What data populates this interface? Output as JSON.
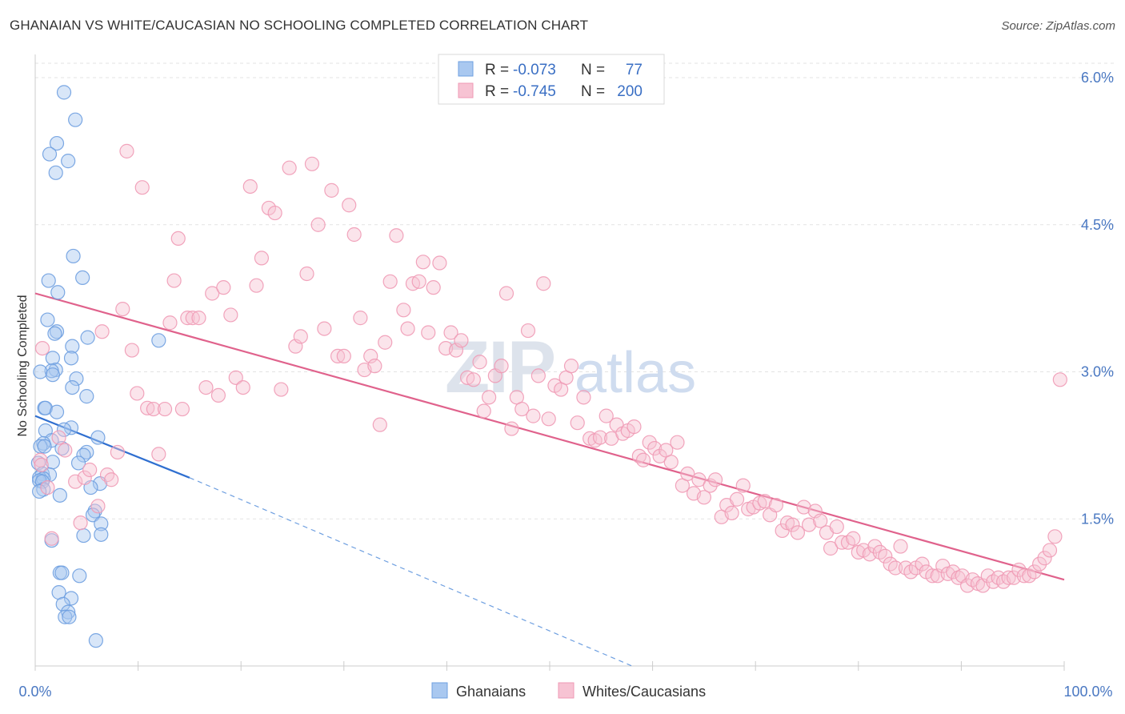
{
  "title": "GHANAIAN VS WHITE/CAUCASIAN NO SCHOOLING COMPLETED CORRELATION CHART",
  "source": "Source: ZipAtlas.com",
  "watermark": {
    "zip": "ZIP",
    "atlas": "atlas"
  },
  "chart_data": {
    "type": "scatter",
    "title": "GHANAIAN VS WHITE/CAUCASIAN NO SCHOOLING COMPLETED CORRELATION CHART",
    "ylabel": "No Schooling Completed",
    "xlim": [
      0,
      100
    ],
    "ylim": [
      0,
      6.3
    ],
    "x_tick_labels": [
      "0.0%",
      "100.0%"
    ],
    "y_ticks": [
      {
        "value": 1.5,
        "label": "1.5%"
      },
      {
        "value": 3.0,
        "label": "3.0%"
      },
      {
        "value": 4.5,
        "label": "4.5%"
      },
      {
        "value": 6.0,
        "label": "6.0%"
      }
    ],
    "grid": "horizontal dashed",
    "legend_position": "top-center",
    "series": [
      {
        "name": "Ghanaians",
        "color": "#6e9fe0",
        "fill": "#a9c8f0",
        "R": "-0.073",
        "N": "77",
        "trend": {
          "x0": 0,
          "y0": 2.55,
          "x1": 15,
          "y1": 1.92,
          "dashed_to_x": 58,
          "dashed_to_y": 0.0
        },
        "points": [
          [
            2.8,
            5.85
          ],
          [
            3.9,
            5.57
          ],
          [
            2.1,
            5.33
          ],
          [
            1.4,
            5.22
          ],
          [
            3.2,
            5.15
          ],
          [
            2.0,
            5.03
          ],
          [
            3.7,
            4.18
          ],
          [
            4.6,
            3.96
          ],
          [
            1.3,
            3.93
          ],
          [
            2.2,
            3.81
          ],
          [
            1.2,
            3.53
          ],
          [
            2.1,
            3.41
          ],
          [
            1.9,
            3.39
          ],
          [
            5.1,
            3.35
          ],
          [
            12.0,
            3.32
          ],
          [
            3.6,
            3.26
          ],
          [
            1.7,
            3.14
          ],
          [
            3.5,
            3.14
          ],
          [
            2.0,
            3.02
          ],
          [
            1.6,
            3.01
          ],
          [
            0.5,
            3.0
          ],
          [
            1.7,
            2.97
          ],
          [
            4.0,
            2.93
          ],
          [
            3.6,
            2.84
          ],
          [
            5.0,
            2.75
          ],
          [
            0.9,
            2.63
          ],
          [
            1.0,
            2.63
          ],
          [
            2.1,
            2.59
          ],
          [
            3.5,
            2.43
          ],
          [
            2.8,
            2.41
          ],
          [
            1.0,
            2.4
          ],
          [
            6.1,
            2.33
          ],
          [
            1.6,
            2.3
          ],
          [
            0.8,
            2.27
          ],
          [
            0.5,
            2.24
          ],
          [
            0.9,
            2.24
          ],
          [
            2.6,
            2.22
          ],
          [
            5.0,
            2.18
          ],
          [
            4.7,
            2.15
          ],
          [
            1.7,
            2.08
          ],
          [
            4.2,
            2.07
          ],
          [
            0.3,
            2.07
          ],
          [
            0.7,
            1.96
          ],
          [
            1.4,
            1.95
          ],
          [
            0.4,
            1.92
          ],
          [
            0.8,
            1.91
          ],
          [
            0.4,
            1.89
          ],
          [
            0.7,
            1.88
          ],
          [
            6.3,
            1.86
          ],
          [
            5.4,
            1.82
          ],
          [
            0.8,
            1.8
          ],
          [
            0.4,
            1.78
          ],
          [
            2.4,
            1.74
          ],
          [
            5.8,
            1.58
          ],
          [
            5.6,
            1.54
          ],
          [
            6.4,
            1.45
          ],
          [
            6.4,
            1.34
          ],
          [
            4.7,
            1.33
          ],
          [
            1.6,
            1.28
          ],
          [
            2.4,
            0.95
          ],
          [
            2.6,
            0.95
          ],
          [
            4.3,
            0.92
          ],
          [
            2.3,
            0.75
          ],
          [
            3.5,
            0.69
          ],
          [
            2.7,
            0.63
          ],
          [
            3.2,
            0.55
          ],
          [
            2.9,
            0.5
          ],
          [
            3.3,
            0.5
          ],
          [
            5.9,
            0.26
          ]
        ]
      },
      {
        "name": "Whites/Caucasians",
        "color": "#ef9ab5",
        "fill": "#f7c3d3",
        "R": "-0.745",
        "N": "200",
        "trend": {
          "x0": 0,
          "y0": 3.8,
          "x1": 100,
          "y1": 0.88
        },
        "points": [
          [
            0.5,
            2.1
          ],
          [
            0.6,
            2.05
          ],
          [
            0.7,
            3.24
          ],
          [
            1.2,
            1.82
          ],
          [
            1.6,
            1.3
          ],
          [
            2.3,
            2.33
          ],
          [
            2.9,
            2.2
          ],
          [
            3.9,
            1.88
          ],
          [
            4.4,
            1.46
          ],
          [
            4.8,
            1.92
          ],
          [
            5.3,
            2.0
          ],
          [
            6.1,
            1.63
          ],
          [
            6.5,
            3.41
          ],
          [
            7.0,
            1.95
          ],
          [
            7.4,
            1.9
          ],
          [
            8.0,
            2.18
          ],
          [
            8.5,
            3.64
          ],
          [
            8.9,
            5.25
          ],
          [
            9.4,
            3.22
          ],
          [
            9.9,
            2.78
          ],
          [
            10.4,
            4.88
          ],
          [
            10.9,
            2.63
          ],
          [
            11.5,
            2.62
          ],
          [
            12.0,
            2.16
          ],
          [
            12.6,
            2.62
          ],
          [
            13.1,
            3.5
          ],
          [
            13.5,
            3.93
          ],
          [
            13.9,
            4.36
          ],
          [
            14.3,
            2.62
          ],
          [
            14.8,
            3.55
          ],
          [
            15.3,
            3.55
          ],
          [
            15.9,
            3.55
          ],
          [
            16.6,
            2.84
          ],
          [
            17.2,
            3.8
          ],
          [
            17.8,
            2.76
          ],
          [
            18.3,
            3.86
          ],
          [
            19.0,
            3.58
          ],
          [
            19.5,
            2.94
          ],
          [
            20.2,
            2.84
          ],
          [
            20.9,
            4.89
          ],
          [
            21.5,
            3.88
          ],
          [
            22.0,
            4.16
          ],
          [
            22.7,
            4.67
          ],
          [
            23.3,
            4.62
          ],
          [
            23.9,
            2.82
          ],
          [
            24.7,
            5.08
          ],
          [
            25.3,
            3.26
          ],
          [
            25.8,
            3.36
          ],
          [
            26.4,
            4.0
          ],
          [
            26.9,
            5.12
          ],
          [
            27.5,
            4.5
          ],
          [
            28.1,
            3.44
          ],
          [
            28.8,
            4.85
          ],
          [
            29.4,
            3.16
          ],
          [
            30.0,
            3.16
          ],
          [
            30.5,
            4.7
          ],
          [
            31.0,
            4.4
          ],
          [
            31.6,
            3.55
          ],
          [
            32.0,
            3.02
          ],
          [
            32.6,
            3.16
          ],
          [
            33.0,
            3.06
          ],
          [
            33.5,
            2.46
          ],
          [
            34.0,
            3.3
          ],
          [
            34.5,
            3.92
          ],
          [
            35.1,
            4.39
          ],
          [
            35.8,
            3.63
          ],
          [
            36.2,
            3.44
          ],
          [
            36.7,
            3.9
          ],
          [
            37.3,
            3.92
          ],
          [
            37.7,
            4.12
          ],
          [
            38.2,
            3.4
          ],
          [
            38.7,
            3.86
          ],
          [
            39.3,
            4.11
          ],
          [
            39.9,
            3.24
          ],
          [
            40.4,
            3.4
          ],
          [
            40.9,
            3.22
          ],
          [
            41.4,
            3.32
          ],
          [
            42.0,
            2.94
          ],
          [
            42.6,
            2.92
          ],
          [
            43.2,
            3.1
          ],
          [
            43.6,
            2.6
          ],
          [
            44.1,
            2.74
          ],
          [
            44.7,
            2.96
          ],
          [
            45.3,
            3.06
          ],
          [
            45.8,
            3.8
          ],
          [
            46.3,
            2.42
          ],
          [
            46.8,
            2.74
          ],
          [
            47.3,
            2.62
          ],
          [
            47.9,
            3.42
          ],
          [
            48.4,
            2.55
          ],
          [
            48.9,
            2.96
          ],
          [
            49.4,
            3.9
          ],
          [
            49.9,
            2.52
          ],
          [
            50.5,
            2.86
          ],
          [
            51.1,
            2.82
          ],
          [
            51.6,
            2.94
          ],
          [
            52.1,
            3.06
          ],
          [
            52.7,
            2.48
          ],
          [
            53.3,
            2.74
          ],
          [
            53.9,
            2.32
          ],
          [
            54.4,
            2.3
          ],
          [
            54.9,
            2.33
          ],
          [
            55.5,
            2.55
          ],
          [
            56.0,
            2.32
          ],
          [
            56.5,
            2.46
          ],
          [
            57.1,
            2.37
          ],
          [
            57.6,
            2.4
          ],
          [
            58.2,
            2.44
          ],
          [
            58.7,
            2.14
          ],
          [
            59.1,
            2.1
          ],
          [
            59.7,
            2.28
          ],
          [
            60.2,
            2.22
          ],
          [
            60.7,
            2.14
          ],
          [
            61.3,
            2.2
          ],
          [
            61.8,
            2.08
          ],
          [
            62.4,
            2.28
          ],
          [
            62.9,
            1.84
          ],
          [
            63.4,
            1.96
          ],
          [
            64.0,
            1.76
          ],
          [
            64.5,
            1.9
          ],
          [
            65.0,
            1.72
          ],
          [
            65.6,
            1.84
          ],
          [
            66.1,
            1.9
          ],
          [
            66.7,
            1.52
          ],
          [
            67.2,
            1.64
          ],
          [
            67.7,
            1.56
          ],
          [
            68.2,
            1.7
          ],
          [
            68.8,
            1.84
          ],
          [
            69.3,
            1.6
          ],
          [
            69.8,
            1.62
          ],
          [
            70.4,
            1.66
          ],
          [
            70.9,
            1.68
          ],
          [
            71.4,
            1.54
          ],
          [
            72.0,
            1.64
          ],
          [
            72.6,
            1.38
          ],
          [
            73.1,
            1.46
          ],
          [
            73.6,
            1.44
          ],
          [
            74.1,
            1.36
          ],
          [
            74.7,
            1.62
          ],
          [
            75.2,
            1.44
          ],
          [
            75.8,
            1.58
          ],
          [
            76.3,
            1.48
          ],
          [
            76.9,
            1.36
          ],
          [
            77.3,
            1.2
          ],
          [
            77.9,
            1.42
          ],
          [
            78.4,
            1.26
          ],
          [
            79.0,
            1.26
          ],
          [
            79.5,
            1.3
          ],
          [
            80.0,
            1.16
          ],
          [
            80.5,
            1.18
          ],
          [
            81.1,
            1.14
          ],
          [
            81.6,
            1.22
          ],
          [
            82.1,
            1.16
          ],
          [
            82.6,
            1.12
          ],
          [
            83.1,
            1.04
          ],
          [
            83.6,
            1.0
          ],
          [
            84.1,
            1.22
          ],
          [
            84.6,
            1.0
          ],
          [
            85.1,
            0.96
          ],
          [
            85.6,
            1.0
          ],
          [
            86.2,
            1.04
          ],
          [
            86.6,
            0.96
          ],
          [
            87.2,
            0.92
          ],
          [
            87.7,
            0.92
          ],
          [
            88.2,
            1.02
          ],
          [
            88.7,
            0.94
          ],
          [
            89.2,
            0.96
          ],
          [
            89.7,
            0.9
          ],
          [
            90.1,
            0.92
          ],
          [
            90.6,
            0.82
          ],
          [
            91.1,
            0.88
          ],
          [
            91.6,
            0.84
          ],
          [
            92.1,
            0.82
          ],
          [
            92.6,
            0.92
          ],
          [
            93.1,
            0.86
          ],
          [
            93.6,
            0.9
          ],
          [
            94.1,
            0.86
          ],
          [
            94.6,
            0.9
          ],
          [
            95.1,
            0.9
          ],
          [
            95.6,
            0.98
          ],
          [
            96.1,
            0.92
          ],
          [
            96.6,
            0.92
          ],
          [
            97.1,
            0.96
          ],
          [
            97.6,
            1.04
          ],
          [
            98.1,
            1.1
          ],
          [
            98.6,
            1.18
          ],
          [
            99.1,
            1.32
          ],
          [
            99.6,
            2.92
          ]
        ]
      }
    ]
  }
}
